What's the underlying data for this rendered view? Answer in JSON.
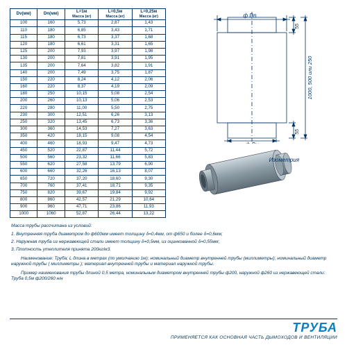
{
  "colors": {
    "ink": "#003355",
    "accent": "#0a7fbf",
    "border": "#003366",
    "pipe_fill": "#9fb0b8",
    "pipe_dark": "#6a7b85"
  },
  "table": {
    "headers": {
      "dv": "Dv(мм)",
      "dn": "Dn(мм)",
      "l1": "L=1м",
      "l05": "L=0,5м",
      "l025": "L=0,25м",
      "mass": "Масса (кг)"
    },
    "rows": [
      [
        "100",
        "160",
        "5,73",
        "2,87",
        "1,43"
      ],
      [
        "110",
        "180",
        "6,85",
        "3,43",
        "1,71"
      ],
      [
        "115",
        "180",
        "6,73",
        "3,37",
        "1,68"
      ],
      [
        "120",
        "180",
        "6,61",
        "3,31",
        "1,65"
      ],
      [
        "125",
        "200",
        "7,93",
        "3,97",
        "1,98"
      ],
      [
        "130",
        "200",
        "7,81",
        "3,91",
        "1,95"
      ],
      [
        "135",
        "200",
        "7,64",
        "3,82",
        "1,91"
      ],
      [
        "140",
        "200",
        "7,49",
        "3,75",
        "1,87"
      ],
      [
        "150",
        "220",
        "8,24",
        "4,12",
        "2,06"
      ],
      [
        "160",
        "220",
        "8,37",
        "4,19",
        "2,09"
      ],
      [
        "180",
        "250",
        "10,15",
        "5,08",
        "2,54"
      ],
      [
        "200",
        "260",
        "10,13",
        "5,06",
        "2,53"
      ],
      [
        "220",
        "280",
        "11,00",
        "5,50",
        "2,75"
      ],
      [
        "230",
        "300",
        "12,51",
        "6,26",
        "3,13"
      ],
      [
        "250",
        "320",
        "13,45",
        "6,73",
        "3,36"
      ],
      [
        "300",
        "360",
        "14,53",
        "7,27",
        "3,63"
      ],
      [
        "350",
        "420",
        "18,15",
        "9,08",
        "4,54"
      ],
      [
        "400",
        "460",
        "18,93",
        "9,47",
        "4,73"
      ],
      [
        "450",
        "520",
        "22,87",
        "11,44",
        "5,72"
      ],
      [
        "500",
        "560",
        "23,32",
        "11,66",
        "5,83"
      ],
      [
        "550",
        "620",
        "27,58",
        "13,79",
        "6,90"
      ],
      [
        "600",
        "660",
        "32,26",
        "16,13",
        "8,07"
      ],
      [
        "650",
        "720",
        "37,20",
        "18,60",
        "9,30"
      ],
      [
        "700",
        "760",
        "37,41",
        "18,71",
        "9,35"
      ],
      [
        "750",
        "820",
        "39,67",
        "19,84",
        "9,92"
      ],
      [
        "800",
        "860",
        "42,57",
        "21,29",
        "10,64"
      ],
      [
        "900",
        "960",
        "47,71",
        "23,86",
        "11,93"
      ],
      [
        "1000",
        "1060",
        "52,87",
        "26,44",
        "13,22"
      ]
    ]
  },
  "schematic": {
    "label_dn": "ф Dn",
    "label_dv": "ф Dv",
    "label_h": "1000, 500 или 250",
    "label_55_top": "55",
    "label_55_bot": "55",
    "label_iso": "Изометрия"
  },
  "notes": {
    "intro": "Масса трубы рассчитана из условий:",
    "n1": "1. Внутренняя труба диаметром до ф600мм имеет толщину δ=0,4мм, от ф650 и более δ=0,6мм;",
    "n2": "2. Наружная труба из нержавеющей стали имеет толщину δ=0,5мм, из оцинкованной δ=0,55мм;",
    "n3": "3. Плотность утеплителя принята 200кг/м3.",
    "desc": "Наименование: Труба; L длина в метрах (по умолчанию 1м); номинальный диаметр внутренней трубы (миллиметры); номинальный диаметр наружной трубы ( миллиметры ); материал внутренней трубы и материал наружной трубы.",
    "example": "Пример наименования трубы длиной 0,5 метра, номинальным диаметром внутренней трубы ф200, наружной ф260 из нержавеющей стали:   Труба 0,5м ф200/260 н/н"
  },
  "title": {
    "main": "ТРУБА",
    "sub": "ПРИМЕНЯЕТСЯ КАК ОСНОВНАЯ ЧАСТЬ ДЫМОХОДОВ И ВЕНТИЛЯЦИИ"
  }
}
